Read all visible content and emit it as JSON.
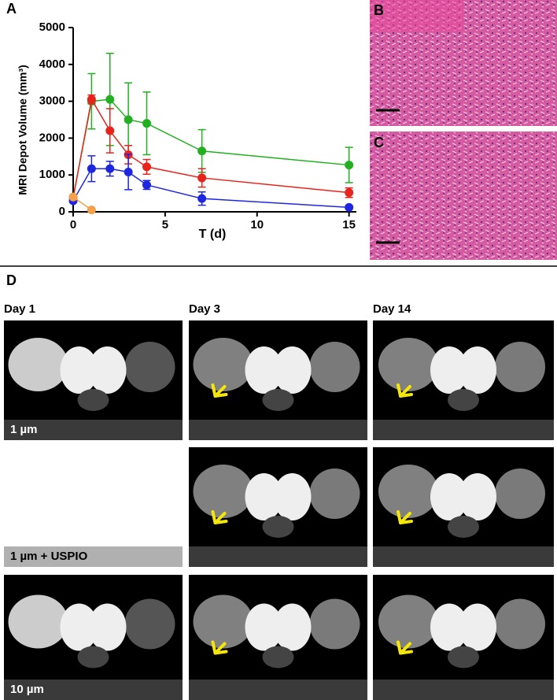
{
  "panel_labels": [
    "A",
    "B",
    "C",
    "D"
  ],
  "mri": {
    "columns": [
      "Day 1",
      "Day 3",
      "Day 14"
    ],
    "rows": [
      "1 µm",
      "1 µm + USPIO",
      "10 µm"
    ]
  },
  "chart_data": {
    "type": "line",
    "y_label": "MRI Depot Volume (mm³)",
    "x_label": "T (d)",
    "x": [
      0,
      1,
      2,
      3,
      4,
      7,
      15
    ],
    "xlim": [
      0,
      15.4
    ],
    "xticks": [
      0,
      5,
      10,
      15
    ],
    "ylim": [
      0,
      5000
    ],
    "yticks": [
      0,
      1000,
      2000,
      3000,
      4000,
      5000
    ],
    "series": [
      {
        "color": "#22b022",
        "values": [
          400,
          3000,
          3050,
          2500,
          2400,
          1650,
          1270
        ],
        "errors": [
          50,
          750,
          1250,
          1000,
          850,
          580,
          480
        ]
      },
      {
        "color": "#e8231b",
        "values": [
          380,
          3050,
          2200,
          1550,
          1220,
          920,
          520
        ],
        "errors": [
          50,
          120,
          600,
          250,
          200,
          250,
          130
        ]
      },
      {
        "color": "#1f26e0",
        "values": [
          300,
          1170,
          1170,
          1080,
          730,
          360,
          120
        ],
        "errors": [
          50,
          350,
          200,
          480,
          120,
          180,
          40
        ]
      },
      {
        "color": "#f5a04a",
        "values": [
          400,
          50,
          null,
          null,
          null,
          null,
          null
        ],
        "errors": [
          0,
          0,
          null,
          null,
          null,
          null,
          null
        ]
      }
    ]
  }
}
